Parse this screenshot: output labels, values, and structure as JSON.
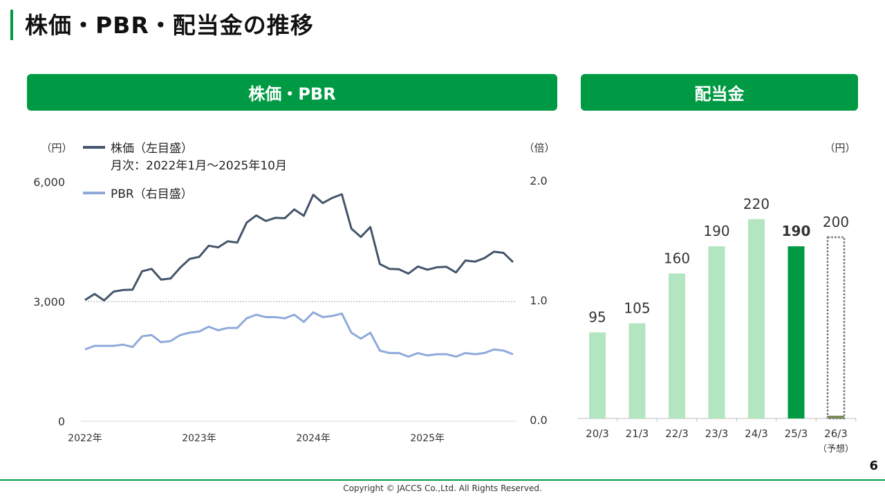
{
  "page": {
    "title": "株価・PBR・配当金の推移",
    "page_number": "6",
    "copyright": "Copyright © JACCS Co.,Ltd. All Rights Reserved.",
    "accent_color": "#009a44"
  },
  "sections": {
    "left_banner": "株価・PBR",
    "right_banner": "配当金"
  },
  "chart_data": [
    {
      "type": "line",
      "left_axis": {
        "unit": "（円）",
        "ticks": [
          "0",
          "3,000",
          "6,000"
        ],
        "ylim": [
          0,
          6000
        ]
      },
      "right_axis": {
        "unit": "（倍）",
        "ticks": [
          "0.0",
          "1.0",
          "2.0"
        ],
        "ylim": [
          0,
          2.0
        ]
      },
      "x_ticks": [
        "2022年",
        "2023年",
        "2024年",
        "2025年"
      ],
      "legend": {
        "price_label": "株価（左目盛）",
        "price_note": "月次：2022年1月～2025年10月",
        "pbr_label": "PBR（右目盛）",
        "placement": "top-left"
      },
      "reference_line": 3000,
      "series": [
        {
          "key": "price",
          "color": "#44546a",
          "axis": "left",
          "values": [
            3040,
            3190,
            3030,
            3250,
            3290,
            3300,
            3760,
            3820,
            3550,
            3580,
            3850,
            4070,
            4120,
            4400,
            4360,
            4510,
            4480,
            4980,
            5160,
            5020,
            5100,
            5090,
            5310,
            5150,
            5680,
            5470,
            5600,
            5690,
            4830,
            4620,
            4870,
            3940,
            3820,
            3810,
            3700,
            3880,
            3800,
            3860,
            3870,
            3730,
            4030,
            4000,
            4090,
            4250,
            4220,
            3990
          ]
        },
        {
          "key": "pbr",
          "color": "#8eaadb",
          "axis": "right",
          "values": [
            0.6,
            0.63,
            0.63,
            0.63,
            0.64,
            0.62,
            0.71,
            0.72,
            0.66,
            0.67,
            0.72,
            0.74,
            0.75,
            0.79,
            0.76,
            0.78,
            0.78,
            0.86,
            0.89,
            0.87,
            0.87,
            0.86,
            0.89,
            0.83,
            0.91,
            0.87,
            0.88,
            0.9,
            0.74,
            0.69,
            0.74,
            0.59,
            0.57,
            0.57,
            0.54,
            0.57,
            0.55,
            0.56,
            0.56,
            0.54,
            0.57,
            0.56,
            0.57,
            0.6,
            0.59,
            0.56
          ]
        }
      ]
    },
    {
      "type": "bar",
      "unit": "（円）",
      "categories": [
        "20/3",
        "21/3",
        "22/3",
        "23/3",
        "24/3",
        "25/3",
        "26/3"
      ],
      "category_note": "（予想）",
      "values": [
        95,
        105,
        160,
        190,
        220,
        190,
        200
      ],
      "labels": [
        "95",
        "105",
        "160",
        "190",
        "220",
        "190",
        "200"
      ],
      "ylim": [
        0,
        240
      ],
      "styles": [
        "past",
        "past",
        "past",
        "past",
        "past",
        "current",
        "forecast"
      ],
      "colors": {
        "past": "#b4e5c1",
        "current": "#009a44",
        "forecast": "#7f7f7f"
      }
    }
  ]
}
